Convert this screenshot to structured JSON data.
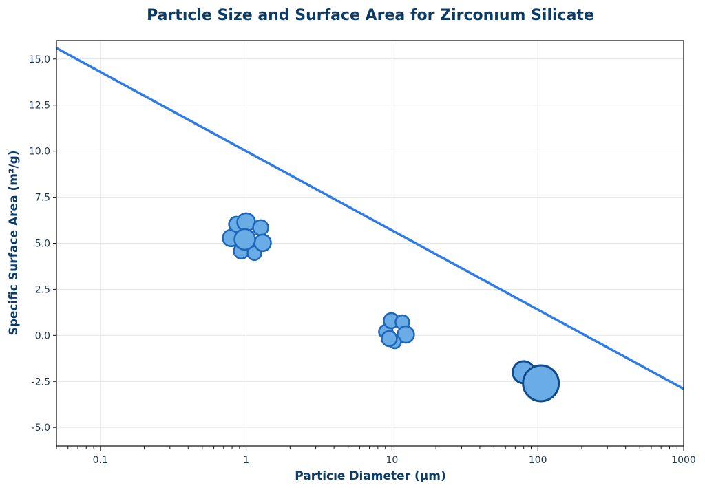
{
  "chart_data": {
    "type": "scatter",
    "title": "Partıcle Size and Surface Area for Zirconıum Silicate",
    "xlabel": "Particıe Diameter (μm)",
    "ylabel": "Specific Surface Area (m²/g)",
    "xscale": "log",
    "xlim": [
      0.05,
      1000
    ],
    "ylim": [
      -6,
      16
    ],
    "grid": true,
    "x_ticks": [
      0.1,
      1,
      10,
      100,
      1000
    ],
    "x_tick_labels": [
      "0.1",
      "1",
      "10",
      "100",
      "1000"
    ],
    "y_ticks": [
      -5,
      -2.5,
      0,
      2.5,
      5,
      7.5,
      10,
      12.5,
      15
    ],
    "y_tick_labels": [
      "-5.0",
      "-2.5",
      "0.0",
      "2.5",
      "5.0",
      "7.5",
      "10.0",
      "12.5",
      "15.0"
    ],
    "curve": {
      "type": "line",
      "x_range": [
        0.05,
        1000
      ],
      "equation": "y = 10 - 4.3 * log10(x)",
      "color": "#2f7bea"
    },
    "points": [
      {
        "x": 1.0,
        "y": 5.1,
        "style": "cluster"
      },
      {
        "x": 10.0,
        "y": 0.2,
        "style": "cluster"
      },
      {
        "x": 80,
        "y": -2.0,
        "style": "single"
      },
      {
        "x": 105,
        "y": -2.6,
        "style": "single-large"
      }
    ],
    "colors": {
      "title": "#0b3b66",
      "marker_fill": "#6aace6",
      "marker_edge": "#1f66b8",
      "marker_edge_dark": "#0f4a8c",
      "grid": "#e3e6ea",
      "frame": "#1a1a1a"
    }
  }
}
